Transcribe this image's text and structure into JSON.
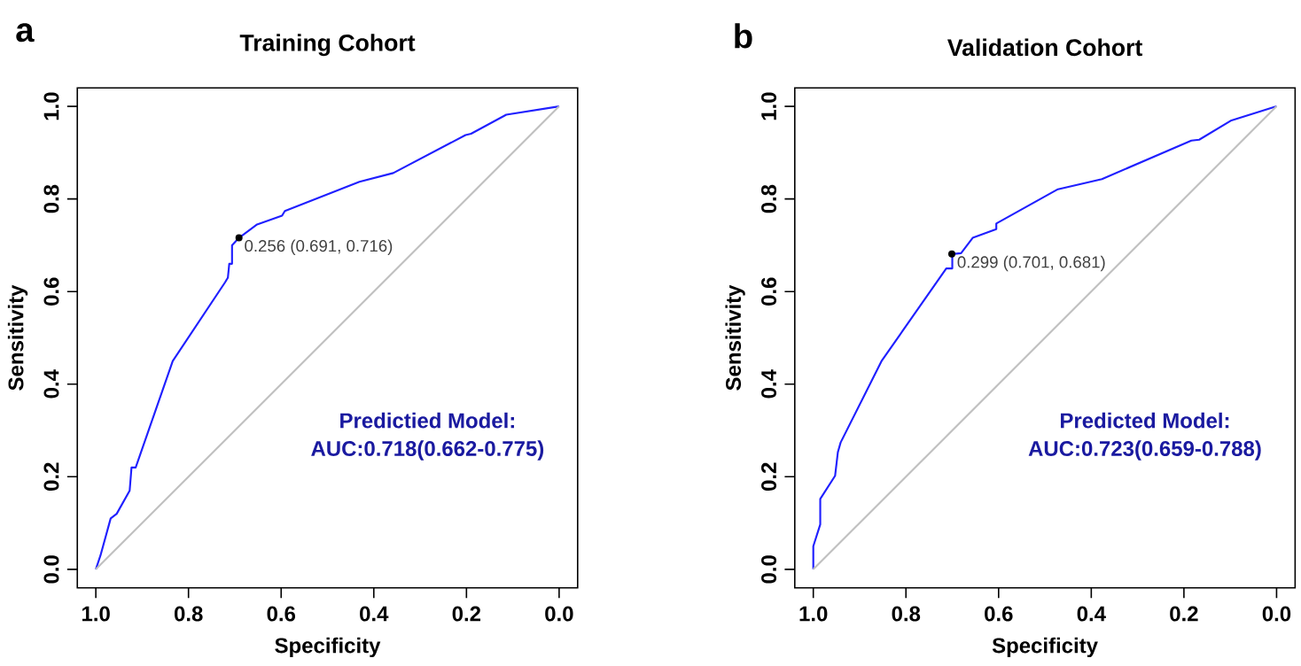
{
  "chart_data": [
    {
      "type": "line",
      "title": "Training Cohort",
      "xlabel": "Specificity",
      "ylabel": "Sensitivity",
      "xlim": [
        1.04,
        -0.04
      ],
      "ylim": [
        -0.04,
        1.04
      ],
      "xticks": [
        {
          "value": 1.0,
          "label": "1.0"
        },
        {
          "value": 0.8,
          "label": "0.8"
        },
        {
          "value": 0.6,
          "label": "0.6"
        },
        {
          "value": 0.4,
          "label": "0.4"
        },
        {
          "value": 0.2,
          "label": "0.2"
        },
        {
          "value": 0.0,
          "label": "0.0"
        }
      ],
      "yticks": [
        {
          "value": 0.0,
          "label": "0.0"
        },
        {
          "value": 0.2,
          "label": "0.2"
        },
        {
          "value": 0.4,
          "label": "0.4"
        },
        {
          "value": 0.6,
          "label": "0.6"
        },
        {
          "value": 0.8,
          "label": "0.8"
        },
        {
          "value": 1.0,
          "label": "1.0"
        }
      ],
      "grid": false,
      "series": [
        {
          "color": "#1f1fff",
          "line_style": "solid",
          "x": [
            1,
            0.99,
            0.968,
            0.955,
            0.927,
            0.923,
            0.914,
            0.834,
            0.721,
            0.715,
            0.712,
            0.706,
            0.706,
            0.691,
            0.652,
            0.598,
            0.592,
            0.431,
            0.358,
            0.202,
            0.19,
            0.114,
            0
          ],
          "values": [
            0,
            0.03,
            0.11,
            0.12,
            0.17,
            0.22,
            0.22,
            0.45,
            0.62,
            0.63,
            0.66,
            0.66,
            0.7,
            0.716,
            0.745,
            0.764,
            0.774,
            0.837,
            0.856,
            0.938,
            0.941,
            0.982,
            1
          ]
        },
        {
          "color": "#c0c0c0",
          "line_style": "solid",
          "x": [
            1,
            0
          ],
          "values": [
            0,
            1
          ]
        },
        {
          "type": "scatter",
          "color": "#000000",
          "marker": "circle",
          "x": [
            0.691
          ],
          "values": [
            0.716
          ]
        }
      ],
      "annotations": [
        "a",
        "Predictied Model:",
        "AUC:0.718(0.662-0.775)",
        {
          "text": "0.256 (0.691, 0.716)",
          "x": 0.691,
          "y": 0.716
        }
      ]
    },
    {
      "type": "line",
      "title": "Validation Cohort",
      "xlabel": "Specificity",
      "ylabel": "Sensitivity",
      "xlim": [
        1.04,
        -0.04
      ],
      "ylim": [
        -0.04,
        1.04
      ],
      "xticks": [
        {
          "value": 1.0,
          "label": "1.0"
        },
        {
          "value": 0.8,
          "label": "0.8"
        },
        {
          "value": 0.6,
          "label": "0.6"
        },
        {
          "value": 0.4,
          "label": "0.4"
        },
        {
          "value": 0.2,
          "label": "0.2"
        },
        {
          "value": 0.0,
          "label": "0.0"
        }
      ],
      "yticks": [
        {
          "value": 0.0,
          "label": "0.0"
        },
        {
          "value": 0.2,
          "label": "0.2"
        },
        {
          "value": 0.4,
          "label": "0.4"
        },
        {
          "value": 0.6,
          "label": "0.6"
        },
        {
          "value": 0.8,
          "label": "0.8"
        },
        {
          "value": 1.0,
          "label": "1.0"
        }
      ],
      "grid": false,
      "series": [
        {
          "color": "#1f1fff",
          "line_style": "solid",
          "x": [
            1,
            1,
            0.985,
            0.985,
            0.953,
            0.947,
            0.941,
            0.852,
            0.713,
            0.7,
            0.7,
            0.681,
            0.656,
            0.605,
            0.605,
            0.472,
            0.377,
            0.184,
            0.167,
            0.099,
            0
          ],
          "values": [
            0,
            0.05,
            0.097,
            0.152,
            0.202,
            0.253,
            0.274,
            0.451,
            0.65,
            0.65,
            0.681,
            0.683,
            0.716,
            0.735,
            0.747,
            0.821,
            0.843,
            0.926,
            0.928,
            0.969,
            1
          ]
        },
        {
          "color": "#c0c0c0",
          "line_style": "solid",
          "x": [
            1,
            0
          ],
          "values": [
            0,
            1
          ]
        },
        {
          "type": "scatter",
          "color": "#000000",
          "marker": "circle",
          "x": [
            0.701
          ],
          "values": [
            0.681
          ]
        }
      ],
      "annotations": [
        "b",
        "Predicted Model:",
        "AUC:0.723(0.659-0.788)",
        {
          "text": "0.299 (0.701, 0.681)",
          "x": 0.701,
          "y": 0.681
        }
      ]
    }
  ]
}
